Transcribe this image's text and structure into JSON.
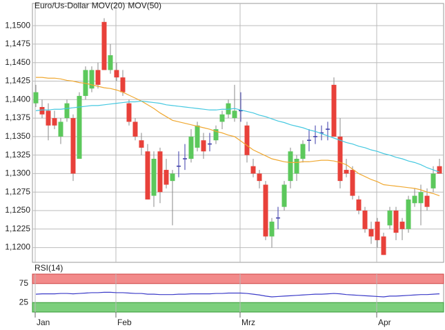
{
  "chart_data": [
    {
      "type": "candlestick",
      "title": "Euro/Us-Dollar",
      "title_color": "#e8413a",
      "categories": [
        "Jan",
        null,
        null,
        null,
        null,
        null,
        null,
        null,
        null,
        null,
        null,
        null,
        null,
        "Feb",
        null,
        null,
        null,
        null,
        null,
        null,
        null,
        null,
        null,
        null,
        null,
        null,
        null,
        null,
        null,
        null,
        null,
        null,
        null,
        "Mrz",
        null,
        null,
        null,
        null,
        null,
        null,
        null,
        null,
        null,
        null,
        null,
        null,
        null,
        null,
        null,
        null,
        null,
        null,
        null,
        null,
        null,
        "Apr",
        null,
        null,
        null,
        null,
        null,
        null,
        null,
        null,
        null,
        null
      ],
      "open": [
        1.1395,
        1.139,
        1.1385,
        1.1375,
        1.135,
        1.1375,
        1.1375,
        1.132,
        1.1405,
        1.1415,
        1.144,
        1.1505,
        1.144,
        1.144,
        1.143,
        1.1395,
        1.137,
        1.1345,
        1.133,
        1.127,
        1.133,
        1.1305,
        1.129,
        1.131,
        1.132,
        1.132,
        1.1335,
        1.1345,
        1.134,
        1.1345,
        1.137,
        1.138,
        1.1375,
        1.1385,
        1.1365,
        1.131,
        1.13,
        1.1285,
        1.1215,
        1.124,
        1.1255,
        1.129,
        1.13,
        1.132,
        1.1345,
        1.135,
        1.1355,
        1.136,
        1.142,
        1.135,
        1.1305,
        1.1305,
        1.1265,
        1.125,
        1.1225,
        1.1235,
        1.1215,
        1.123,
        1.125,
        1.1235,
        1.1225,
        1.126,
        1.126,
        1.127,
        1.128,
        1.131
      ],
      "high": [
        1.142,
        1.14,
        1.1395,
        1.1385,
        1.1375,
        1.14,
        1.138,
        1.141,
        1.1445,
        1.1445,
        1.145,
        1.151,
        1.1475,
        1.145,
        1.144,
        1.14,
        1.1375,
        1.1355,
        1.134,
        1.133,
        1.1335,
        1.132,
        1.1305,
        1.133,
        1.134,
        1.136,
        1.137,
        1.1355,
        1.1355,
        1.1365,
        1.1385,
        1.14,
        1.142,
        1.141,
        1.137,
        1.132,
        1.1305,
        1.129,
        1.124,
        1.1255,
        1.129,
        1.1335,
        1.1325,
        1.1345,
        1.136,
        1.1365,
        1.1365,
        1.137,
        1.143,
        1.1375,
        1.132,
        1.131,
        1.127,
        1.1255,
        1.1235,
        1.124,
        1.122,
        1.1255,
        1.1255,
        1.124,
        1.127,
        1.128,
        1.1285,
        1.128,
        1.131,
        1.132
      ],
      "low": [
        1.139,
        1.1375,
        1.1345,
        1.136,
        1.134,
        1.137,
        1.129,
        1.132,
        1.14,
        1.141,
        1.1415,
        1.144,
        1.1435,
        1.1425,
        1.1405,
        1.1365,
        1.1345,
        1.1325,
        1.1265,
        1.1255,
        1.126,
        1.128,
        1.123,
        1.1295,
        1.1305,
        1.1315,
        1.133,
        1.132,
        1.133,
        1.134,
        1.136,
        1.1375,
        1.137,
        1.137,
        1.1315,
        1.1295,
        1.128,
        1.121,
        1.12,
        1.1225,
        1.125,
        1.128,
        1.129,
        1.1315,
        1.133,
        1.134,
        1.1345,
        1.1345,
        1.135,
        1.128,
        1.1295,
        1.1265,
        1.1245,
        1.122,
        1.1205,
        1.12,
        1.119,
        1.1225,
        1.121,
        1.121,
        1.122,
        1.1255,
        1.123,
        1.125,
        1.1275,
        1.13
      ],
      "close": [
        1.141,
        1.138,
        1.1365,
        1.1365,
        1.137,
        1.1395,
        1.13,
        1.1405,
        1.144,
        1.144,
        1.142,
        1.144,
        1.146,
        1.143,
        1.141,
        1.137,
        1.135,
        1.1335,
        1.1265,
        1.132,
        1.1275,
        1.1285,
        1.13,
        1.131,
        1.132,
        1.135,
        1.1365,
        1.133,
        1.134,
        1.136,
        1.138,
        1.1395,
        1.1385,
        1.1385,
        1.1325,
        1.13,
        1.129,
        1.1215,
        1.1235,
        1.124,
        1.1285,
        1.133,
        1.132,
        1.134,
        1.1345,
        1.135,
        1.1355,
        1.136,
        1.135,
        1.129,
        1.13,
        1.127,
        1.125,
        1.1225,
        1.1215,
        1.121,
        1.119,
        1.125,
        1.122,
        1.1225,
        1.1265,
        1.127,
        1.1275,
        1.1255,
        1.13,
        1.13
      ],
      "up_color": "#5cc85c",
      "down_color": "#e8413a",
      "doji_color": "#3a3aa8",
      "series": [
        {
          "name": "MOV(20)",
          "color": "#f0a830",
          "values": [
            1.143,
            1.143,
            1.1429,
            1.1429,
            1.1428,
            1.1426,
            1.1425,
            1.1423,
            1.1422,
            1.142,
            1.1418,
            1.1416,
            1.1415,
            1.1413,
            1.141,
            1.1406,
            1.1402,
            1.1398,
            1.1393,
            1.1388,
            1.1382,
            1.1377,
            1.1372,
            1.137,
            1.1368,
            1.1366,
            1.1364,
            1.1362,
            1.136,
            1.1357,
            1.1355,
            1.1352,
            1.135,
            1.1344,
            1.1338,
            1.1332,
            1.1328,
            1.1324,
            1.132,
            1.1318,
            1.1316,
            1.1315,
            1.1315,
            1.1316,
            1.1316,
            1.1317,
            1.1318,
            1.1318,
            1.1317,
            1.1315,
            1.1312,
            1.1306,
            1.13,
            1.1296,
            1.1292,
            1.1289,
            1.1285,
            1.1284,
            1.1283,
            1.1282,
            1.1281,
            1.128,
            1.1278,
            1.1275,
            1.1273,
            1.127
          ]
        },
        {
          "name": "MOV(50)",
          "color": "#44c8e0",
          "values": [
            1.1385,
            1.1386,
            1.1386,
            1.1387,
            1.1387,
            1.1388,
            1.1389,
            1.139,
            1.1391,
            1.1392,
            1.1392,
            1.1393,
            1.1394,
            1.1395,
            1.1396,
            1.1397,
            1.1397,
            1.1398,
            1.1397,
            1.1396,
            1.1395,
            1.1393,
            1.1392,
            1.1391,
            1.139,
            1.1389,
            1.1388,
            1.1387,
            1.1386,
            1.1386,
            1.1387,
            1.1387,
            1.1388,
            1.1386,
            1.1384,
            1.1382,
            1.1379,
            1.1377,
            1.1374,
            1.1371,
            1.1369,
            1.1366,
            1.1364,
            1.1362,
            1.1359,
            1.1357,
            1.1354,
            1.1351,
            1.1348,
            1.1345,
            1.1342,
            1.134,
            1.1337,
            1.1335,
            1.1332,
            1.133,
            1.1327,
            1.1325,
            1.1322,
            1.132,
            1.1317,
            1.1315,
            1.1312,
            1.1308,
            1.1305,
            1.1302
          ]
        }
      ],
      "ylim": [
        1.118,
        1.153
      ],
      "yticks": [
        {
          "value": 1.12,
          "label": "1,1200"
        },
        {
          "value": 1.1225,
          "label": "1,1225"
        },
        {
          "value": 1.125,
          "label": "1,1250"
        },
        {
          "value": 1.1275,
          "label": "1,1275"
        },
        {
          "value": 1.13,
          "label": "1,1300"
        },
        {
          "value": 1.1325,
          "label": "1,1325"
        },
        {
          "value": 1.135,
          "label": "1,1350"
        },
        {
          "value": 1.1375,
          "label": "1,1375"
        },
        {
          "value": 1.14,
          "label": "1,1400"
        },
        {
          "value": 1.1425,
          "label": "1,1425"
        },
        {
          "value": 1.145,
          "label": "1,1450"
        },
        {
          "value": 1.1475,
          "label": "1,1475"
        },
        {
          "value": 1.15,
          "label": "1,1500"
        }
      ],
      "grid": true
    },
    {
      "type": "line",
      "series": [
        {
          "name": "RSI(14)",
          "color": "#3a3ac8",
          "values": [
            47,
            48,
            48,
            48,
            49,
            49,
            48,
            49,
            50,
            51,
            51,
            52,
            52,
            51,
            51,
            50,
            49,
            49,
            47,
            47,
            46,
            46,
            46,
            47,
            47,
            48,
            48,
            48,
            48,
            49,
            49,
            50,
            50,
            50,
            49,
            47,
            45,
            42,
            40,
            41,
            42,
            43,
            44,
            45,
            46,
            47,
            47,
            48,
            49,
            48,
            46,
            45,
            44,
            43,
            42,
            41,
            40,
            42,
            42,
            43,
            44,
            45,
            46,
            46,
            47,
            48
          ]
        }
      ],
      "ylim": [
        0,
        100
      ],
      "yticks": [
        25,
        75
      ],
      "upper_band_color": "#f28a8a",
      "lower_band_color": "#7ccf7c"
    }
  ]
}
